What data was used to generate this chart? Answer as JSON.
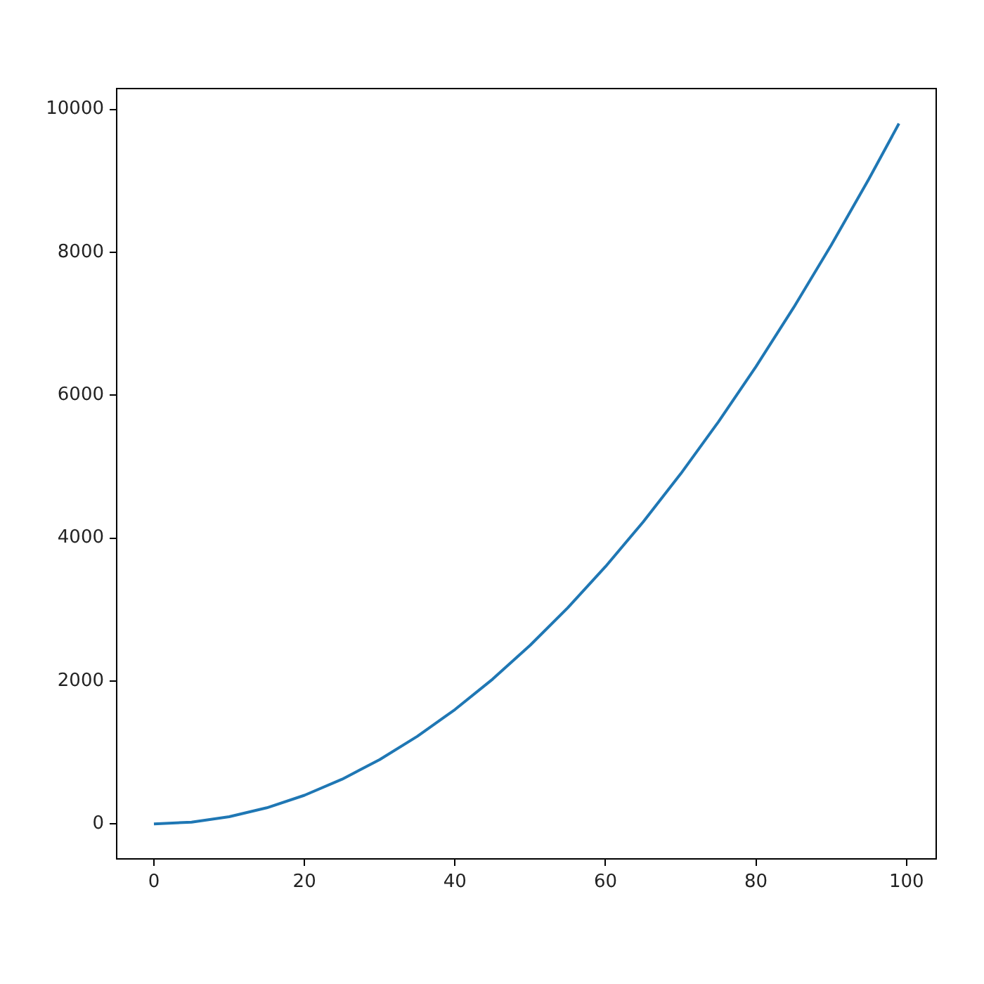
{
  "chart_data": {
    "type": "line",
    "x": [
      0,
      5,
      10,
      15,
      20,
      25,
      30,
      35,
      40,
      45,
      50,
      55,
      60,
      65,
      70,
      75,
      80,
      85,
      90,
      95,
      99
    ],
    "series": [
      {
        "color": "#1f77b4",
        "values": [
          0,
          25,
          100,
          225,
          400,
          625,
          900,
          1225,
          1600,
          2025,
          2500,
          3025,
          3600,
          4225,
          4900,
          5625,
          6400,
          7225,
          8100,
          9025,
          9801
        ]
      }
    ],
    "xlim": [
      -4.95,
      103.95
    ],
    "xticks": [
      0,
      20,
      40,
      60,
      80,
      100
    ],
    "ylim": [
      -490,
      10291
    ],
    "yticks": [
      0,
      2000,
      4000,
      6000,
      8000,
      10000
    ],
    "grid": false,
    "legend": false,
    "marker": "none",
    "line_style": "solid"
  }
}
